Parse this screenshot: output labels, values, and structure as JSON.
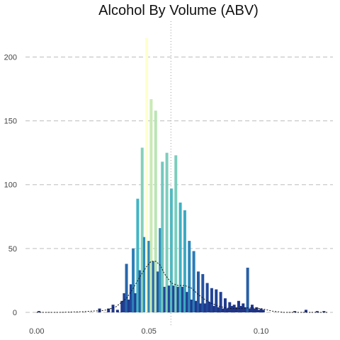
{
  "chart_data": {
    "type": "bar",
    "title": "Alcohol By Volume (ABV)",
    "xlabel": "",
    "ylabel": "",
    "xlim": [
      -0.005,
      0.132
    ],
    "ylim": [
      0,
      228
    ],
    "x_ticks": [
      0.0,
      0.05,
      0.1
    ],
    "x_tick_labels": [
      "0.00",
      "0.05",
      "0.10"
    ],
    "y_ticks": [
      0,
      50,
      100,
      150,
      200
    ],
    "y_tick_labels": [
      "0",
      "50",
      "100",
      "150",
      "200"
    ],
    "grid": "horizontal dashed",
    "legend": "none",
    "mean_line_x": 0.0598,
    "bar_width": 0.0012,
    "bars": {
      "x": [
        0.001,
        0.028,
        0.032,
        0.034,
        0.036,
        0.038,
        0.039,
        0.04,
        0.041,
        0.042,
        0.043,
        0.044,
        0.045,
        0.046,
        0.047,
        0.048,
        0.049,
        0.05,
        0.051,
        0.052,
        0.053,
        0.054,
        0.055,
        0.056,
        0.057,
        0.058,
        0.059,
        0.06,
        0.061,
        0.062,
        0.063,
        0.064,
        0.065,
        0.066,
        0.067,
        0.068,
        0.069,
        0.07,
        0.071,
        0.072,
        0.073,
        0.074,
        0.075,
        0.076,
        0.077,
        0.078,
        0.079,
        0.08,
        0.081,
        0.082,
        0.083,
        0.084,
        0.085,
        0.086,
        0.087,
        0.088,
        0.089,
        0.09,
        0.091,
        0.092,
        0.093,
        0.094,
        0.095,
        0.096,
        0.097,
        0.098,
        0.099,
        0.1,
        0.101,
        0.115,
        0.12,
        0.125,
        0.128
      ],
      "y": [
        1,
        3,
        3,
        6,
        2,
        9,
        15,
        38,
        10,
        22,
        50,
        15,
        89,
        33,
        129,
        59,
        215,
        56,
        167,
        40,
        158,
        32,
        66,
        118,
        20,
        125,
        21,
        97,
        21,
        123,
        20,
        86,
        20,
        80,
        16,
        56,
        10,
        48,
        9,
        32,
        7,
        30,
        7,
        23,
        8,
        19,
        5,
        18,
        4,
        16,
        3,
        11,
        3,
        8,
        5,
        6,
        4,
        9,
        5,
        7,
        4,
        35,
        3,
        6,
        3,
        4,
        2,
        3,
        2,
        1,
        2,
        1,
        1
      ]
    },
    "density": {
      "x": [
        0.0,
        0.01,
        0.02,
        0.03,
        0.035,
        0.04,
        0.043,
        0.046,
        0.049,
        0.051,
        0.053,
        0.055,
        0.057,
        0.06,
        0.063,
        0.066,
        0.069,
        0.072,
        0.075,
        0.078,
        0.081,
        0.084,
        0.087,
        0.09,
        0.093,
        0.096,
        0.1,
        0.105,
        0.11,
        0.13
      ],
      "y": [
        0,
        0,
        0.5,
        1.5,
        4,
        11,
        19,
        28,
        36,
        40,
        40,
        37,
        30,
        23,
        21,
        21,
        19,
        14,
        10,
        7,
        5,
        3.5,
        3,
        3,
        3.5,
        3.5,
        3,
        1,
        0,
        0
      ]
    }
  }
}
